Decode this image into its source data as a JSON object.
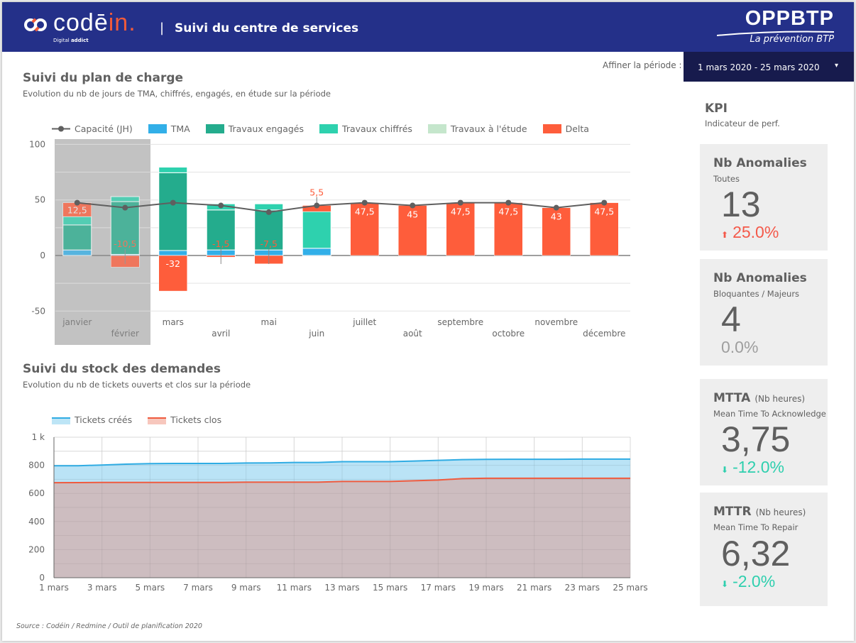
{
  "header": {
    "logo_text_main": "codē",
    "logo_text_accent": "in.",
    "logo_sub_light": "Digital",
    "logo_sub_bold": "addict",
    "separator": "|",
    "title": "Suivi du centre de services",
    "brand_name": "OPPBTP",
    "brand_tagline": "La prévention BTP"
  },
  "filter": {
    "label": "Affiner la période :",
    "value": "1 mars 2020 - 25 mars 2020",
    "caret": "▾"
  },
  "section1": {
    "title": "Suivi du plan de charge",
    "subtitle": "Evolution du nb de jours de TMA,  chiffrés, engagés, en étude sur la période"
  },
  "section2": {
    "title": "Suivi du stock des demandes",
    "subtitle": "Evolution du nb de tickets ouverts et clos sur la période"
  },
  "kpi": {
    "title": "KPI",
    "subtitle": "Indicateur de perf.",
    "cards": [
      {
        "name": "Nb Anomalies",
        "unit": "",
        "desc": "Toutes",
        "value": "13",
        "delta": "25.0%",
        "arrow": "⬆",
        "trend": "up",
        "color": "#f4594a"
      },
      {
        "name": "Nb Anomalies",
        "unit": "",
        "desc": "Bloquantes / Majeurs",
        "value": "4",
        "delta": "0.0%",
        "arrow": "",
        "trend": "flat",
        "color": "#9e9e9e"
      },
      {
        "name": "MTTA",
        "unit": "(Nb heures)",
        "desc": "Mean Time To Acknowledge",
        "value": "3,75",
        "delta": "-12.0%",
        "arrow": "⬇",
        "trend": "down",
        "color": "#2ecfae"
      },
      {
        "name": "MTTR",
        "unit": "(Nb heures)",
        "desc": "Mean Time To Repair",
        "value": "6,32",
        "delta": "-2.0%",
        "arrow": "⬇",
        "trend": "down",
        "color": "#2ecfae"
      }
    ]
  },
  "source": "Source :  Codéin / Redmine / Outil de planification 2020",
  "colors": {
    "header_bg": "#243089",
    "filter_bg": "#171b4d",
    "tma": "#32afe8",
    "engages": "#24ac8d",
    "chiffres": "#2ed1ae",
    "etude": "#c5e6cc",
    "delta": "#fe5d3b",
    "capacity": "#5f5f5f",
    "tickets_crees": "#30ace3",
    "tickets_clos": "#ef5b3f"
  },
  "chart_data": [
    {
      "type": "bar",
      "stacked": true,
      "title": "Suivi du plan de charge",
      "categories": [
        "janvier",
        "février",
        "mars",
        "avril",
        "mai",
        "juin",
        "juillet",
        "août",
        "septembre",
        "octobre",
        "novembre",
        "décembre"
      ],
      "ylim": [
        -50,
        100
      ],
      "yticks": [
        -50,
        0,
        50,
        100
      ],
      "grid": true,
      "legend_position": "top",
      "highlighted_categories": [
        "janvier",
        "février"
      ],
      "series": [
        {
          "name": "TMA",
          "values": [
            5,
            1,
            4.5,
            5,
            5,
            6.5,
            0,
            0,
            0,
            0,
            0,
            0
          ]
        },
        {
          "name": "Travaux engagés",
          "values": [
            22.5,
            47.5,
            70,
            36,
            36,
            0,
            0,
            0,
            0,
            0,
            0,
            0
          ]
        },
        {
          "name": "Travaux chiffrés",
          "values": [
            7.5,
            4.5,
            5,
            5.5,
            5.5,
            33,
            0,
            0,
            0,
            0,
            0,
            0
          ]
        },
        {
          "name": "Travaux à l'étude",
          "values": [
            0,
            0,
            0,
            0,
            0,
            0,
            0,
            0,
            0,
            0,
            0,
            0
          ]
        },
        {
          "name": "Delta",
          "values": [
            12.5,
            -10.5,
            -32,
            -1.5,
            -7.5,
            5.5,
            47.5,
            45,
            47.5,
            47.5,
            43,
            47.5
          ]
        }
      ],
      "line": {
        "name": "Capacité (JH)",
        "values": [
          47.5,
          43,
          47.5,
          45,
          39,
          45,
          47.5,
          45,
          47.5,
          47.5,
          43,
          47.5
        ]
      },
      "data_labels": [
        "12,5",
        "-10,5",
        "-32",
        "-1,5",
        "-7,5",
        "5,5",
        "47,5",
        "45",
        "47,5",
        "47,5",
        "43",
        "47,5"
      ]
    },
    {
      "type": "area",
      "title": "Suivi du stock des demandes",
      "x": [
        "1 mars",
        "2 mars",
        "3 mars",
        "4 mars",
        "5 mars",
        "6 mars",
        "7 mars",
        "8 mars",
        "9 mars",
        "10 mars",
        "11 mars",
        "12 mars",
        "13 mars",
        "14 mars",
        "15 mars",
        "16 mars",
        "17 mars",
        "18 mars",
        "19 mars",
        "20 mars",
        "21 mars",
        "22 mars",
        "23 mars",
        "24 mars",
        "25 mars"
      ],
      "xticks": [
        "1 mars",
        "3 mars",
        "5 mars",
        "7 mars",
        "9 mars",
        "11 mars",
        "13 mars",
        "15 mars",
        "17 mars",
        "19 mars",
        "21 mars",
        "23 mars",
        "25 mars"
      ],
      "ylim": [
        0,
        1000
      ],
      "yticks": [
        0,
        200,
        400,
        600,
        800,
        1000
      ],
      "ytick_labels": [
        "0",
        "200",
        "400",
        "600",
        "800",
        "1 k"
      ],
      "grid": true,
      "legend_position": "top-left",
      "series": [
        {
          "name": "Tickets créés",
          "values": [
            797,
            797,
            802,
            808,
            812,
            813,
            813,
            813,
            816,
            817,
            820,
            820,
            826,
            826,
            826,
            830,
            835,
            840,
            842,
            843,
            843,
            843,
            844,
            844,
            844
          ]
        },
        {
          "name": "Tickets clos",
          "values": [
            676,
            677,
            678,
            678,
            678,
            678,
            678,
            678,
            680,
            680,
            680,
            680,
            685,
            685,
            685,
            690,
            695,
            705,
            708,
            708,
            708,
            708,
            708,
            708,
            708
          ]
        }
      ]
    }
  ]
}
